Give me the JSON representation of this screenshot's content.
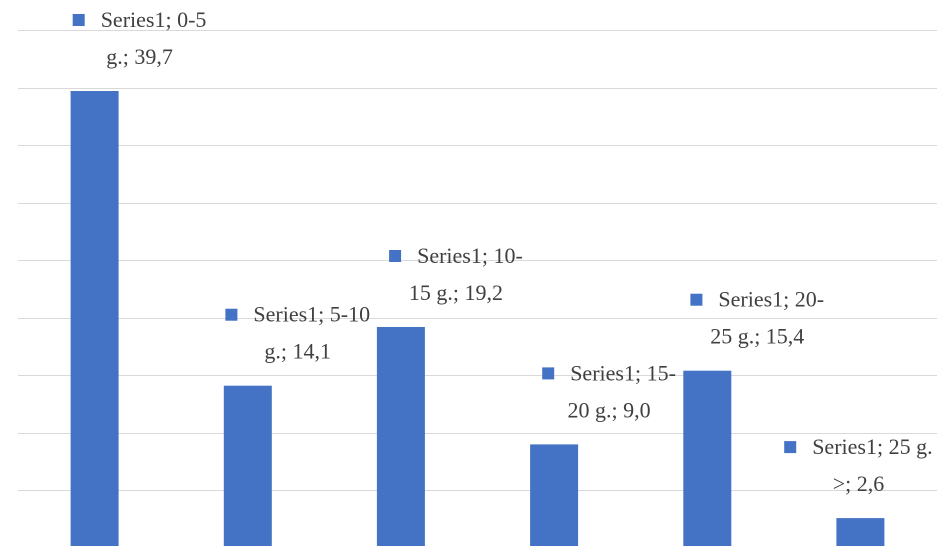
{
  "chart_data": {
    "type": "bar",
    "categories": [
      "0-5 g.",
      "5-10 g.",
      "10-15 g.",
      "15-20 g.",
      "20-25 g.",
      "25 g. >"
    ],
    "series": [
      {
        "name": "Series1",
        "values": [
          39.7,
          14.1,
          19.2,
          9.0,
          15.4,
          2.6
        ]
      }
    ],
    "data_labels": [
      [
        "Series1; 0-5",
        "g.; 39,7"
      ],
      [
        "Series1; 5-10",
        "g.; 14,1"
      ],
      [
        "Series1; 10-",
        "15 g.; 19,2"
      ],
      [
        "Series1; 15-",
        "20 g.; 9,0"
      ],
      [
        "Series1; 20-",
        "25 g.; 15,4"
      ],
      [
        "Series1; 25 g.",
        ">; 2,6"
      ]
    ],
    "ylim": [
      0,
      45
    ],
    "grid": true,
    "title": "",
    "xlabel": "",
    "ylabel": "",
    "colors": {
      "bar": "#4472c4",
      "grid": "#d9d9d9",
      "text": "#404040"
    }
  }
}
